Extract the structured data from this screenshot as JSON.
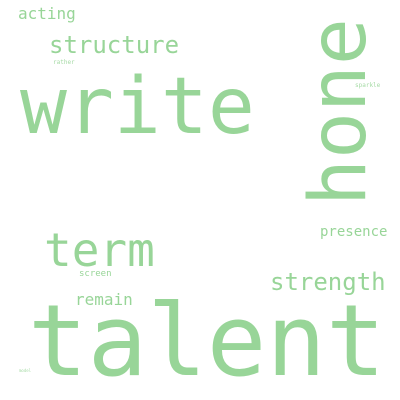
{
  "word_cloud": {
    "text_color": "#98d598",
    "words": {
      "acting": "acting",
      "structure": "structure",
      "rather": "rather",
      "write": "write",
      "hone": "hone",
      "sparkle": "sparkle",
      "presence": "presence",
      "term": "term",
      "screen": "screen",
      "strength": "strength",
      "remain": "remain",
      "talent": "talent",
      "model": "model"
    }
  }
}
